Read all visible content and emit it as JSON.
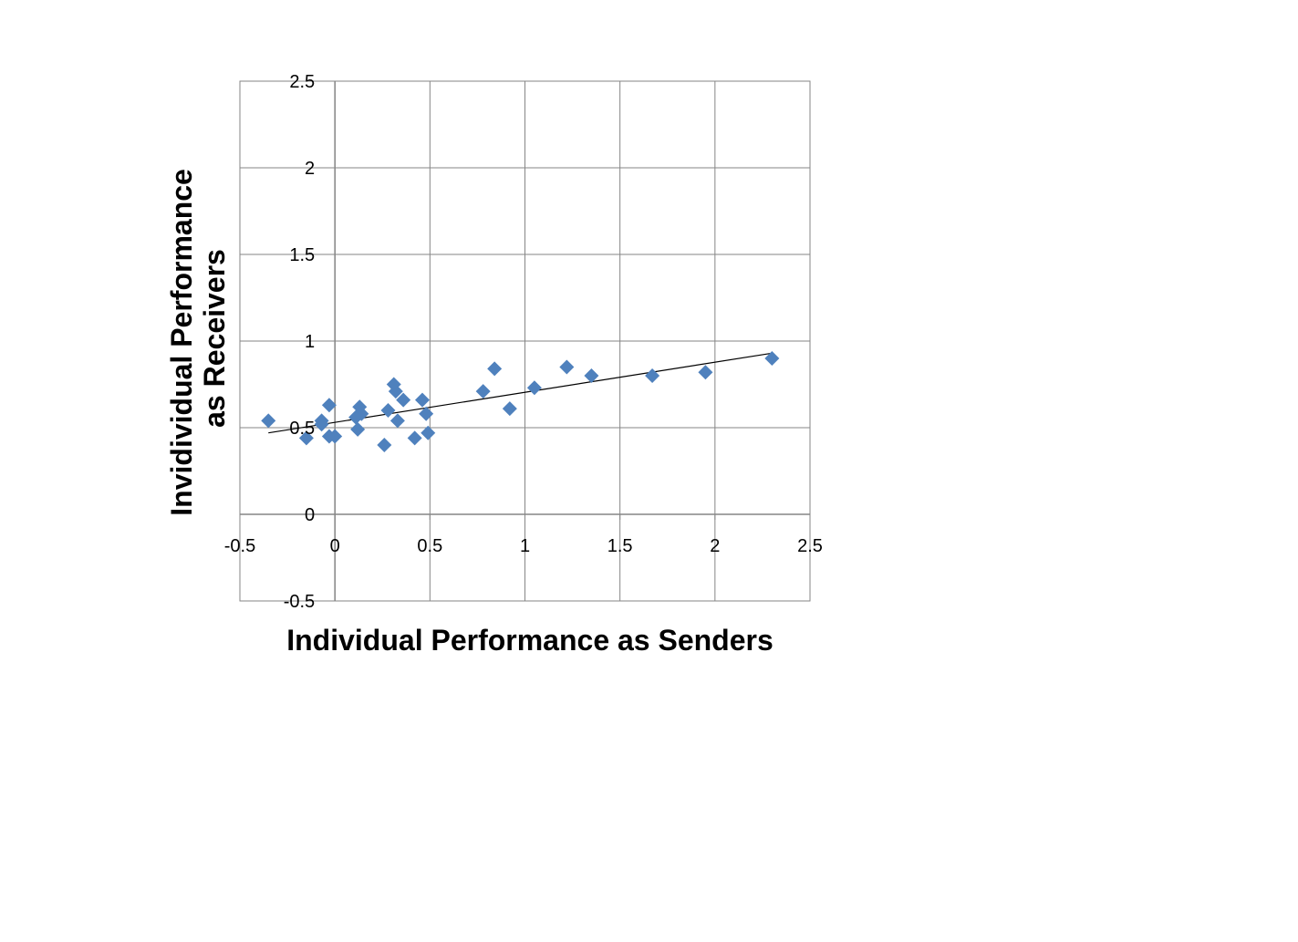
{
  "chart_data": {
    "type": "scatter",
    "title": "",
    "xlabel": "Individual Performance as Senders",
    "ylabel": "Invidividual Performance as Receivers",
    "ylabel_lines": [
      "Invidividual Performance",
      "as Receivers"
    ],
    "xlim": [
      -0.5,
      2.5
    ],
    "ylim": [
      -0.5,
      2.5
    ],
    "x_ticks": [
      "-0.5",
      "0",
      "0.5",
      "1",
      "1.5",
      "2",
      "2.5"
    ],
    "y_ticks": [
      "-0.5",
      "0",
      "0.5",
      "1",
      "1.5",
      "2",
      "2.5"
    ],
    "grid": true,
    "legend": "none",
    "marker": "diamond",
    "colors": {
      "marker": "#4F81BD",
      "grid": "#868686",
      "axis": "#868686",
      "trendline": "#000000"
    },
    "series": [
      {
        "points": [
          {
            "x": -0.35,
            "y": 0.54
          },
          {
            "x": -0.15,
            "y": 0.44
          },
          {
            "x": -0.07,
            "y": 0.54
          },
          {
            "x": -0.07,
            "y": 0.52
          },
          {
            "x": -0.03,
            "y": 0.63
          },
          {
            "x": -0.03,
            "y": 0.45
          },
          {
            "x": 0.0,
            "y": 0.45
          },
          {
            "x": 0.11,
            "y": 0.56
          },
          {
            "x": 0.12,
            "y": 0.49
          },
          {
            "x": 0.13,
            "y": 0.62
          },
          {
            "x": 0.14,
            "y": 0.58
          },
          {
            "x": 0.26,
            "y": 0.4
          },
          {
            "x": 0.28,
            "y": 0.6
          },
          {
            "x": 0.31,
            "y": 0.75
          },
          {
            "x": 0.32,
            "y": 0.71
          },
          {
            "x": 0.33,
            "y": 0.54
          },
          {
            "x": 0.36,
            "y": 0.66
          },
          {
            "x": 0.42,
            "y": 0.44
          },
          {
            "x": 0.46,
            "y": 0.66
          },
          {
            "x": 0.48,
            "y": 0.58
          },
          {
            "x": 0.49,
            "y": 0.47
          },
          {
            "x": 0.78,
            "y": 0.71
          },
          {
            "x": 0.84,
            "y": 0.84
          },
          {
            "x": 0.92,
            "y": 0.61
          },
          {
            "x": 1.05,
            "y": 0.73
          },
          {
            "x": 1.22,
            "y": 0.85
          },
          {
            "x": 1.35,
            "y": 0.8
          },
          {
            "x": 1.67,
            "y": 0.8
          },
          {
            "x": 1.95,
            "y": 0.82
          },
          {
            "x": 2.3,
            "y": 0.9
          }
        ]
      }
    ],
    "trendline": {
      "type": "linear",
      "x": [
        -0.35,
        2.3
      ],
      "y": [
        0.47,
        0.93
      ]
    }
  }
}
